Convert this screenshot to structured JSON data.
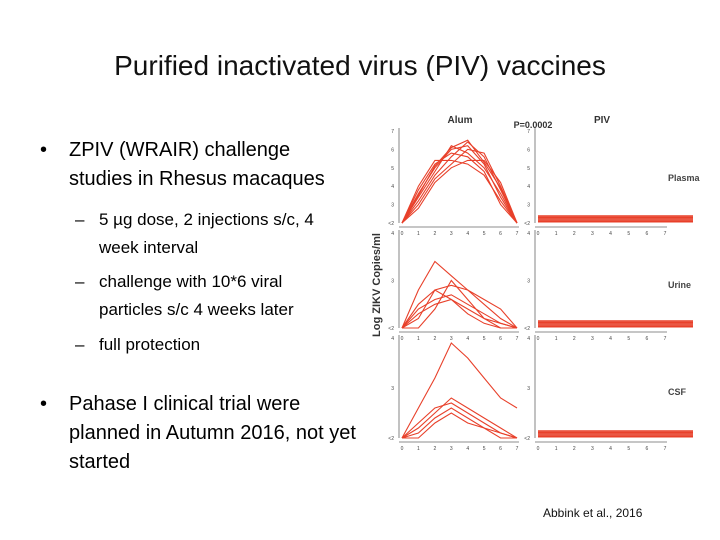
{
  "slide": {
    "title": "Purified inactivated virus (PIV) vaccines",
    "citation": "Abbink et al., 2016"
  },
  "bullets": [
    {
      "marker": "•",
      "text": "ZPIV (WRAIR) challenge studies in Rhesus macaques"
    },
    {
      "marker": "–",
      "text": "5 µg dose, 2 injections s/c, 4 week interval"
    },
    {
      "marker": "–",
      "text": "challenge with 10*6 viral particles s/c 4 weeks later"
    },
    {
      "marker": "–",
      "text": "full protection"
    },
    {
      "marker": "•",
      "text": "Pahase I clinical trial were planned in Autumn 2016, not yet started"
    }
  ],
  "figure": {
    "ylabel": "Log ZIKV Copies/ml",
    "pvalue": "P=0.0002",
    "columns": [
      "Alum",
      "PIV"
    ],
    "panels": [
      {
        "name": "Plasma",
        "yticks": [
          "<2",
          "3",
          "4",
          "5",
          "6",
          "7"
        ]
      },
      {
        "name": "Urine",
        "yticks": [
          "<2",
          "3",
          "4"
        ]
      },
      {
        "name": "CSF",
        "yticks": [
          "<2",
          "3",
          "4"
        ]
      }
    ],
    "xticks": [
      "0",
      "1",
      "2",
      "3",
      "4",
      "5",
      "6",
      "7"
    ],
    "line_color": "#e8402a"
  },
  "chart_data": {
    "type": "line",
    "x": [
      0,
      1,
      2,
      3,
      4,
      5,
      6,
      7
    ],
    "panels": [
      {
        "name": "Plasma",
        "ylim": [
          2,
          7
        ],
        "alum": [
          [
            2,
            3.2,
            4.6,
            5.6,
            6.4,
            5.6,
            3.8,
            2
          ],
          [
            2,
            3.6,
            5.0,
            6.0,
            6.2,
            5.2,
            3.4,
            2
          ],
          [
            2,
            3.8,
            5.2,
            5.8,
            5.6,
            4.8,
            3.0,
            2
          ],
          [
            2,
            3.0,
            4.4,
            5.2,
            6.0,
            5.8,
            4.0,
            2
          ],
          [
            2,
            3.4,
            4.8,
            6.2,
            5.8,
            5.0,
            3.6,
            2
          ],
          [
            2,
            4.0,
            5.4,
            5.4,
            5.2,
            4.6,
            3.2,
            2
          ],
          [
            2,
            2.8,
            4.2,
            5.0,
            5.4,
            5.4,
            4.2,
            2
          ],
          [
            2,
            3.5,
            5.1,
            6.1,
            6.5,
            5.3,
            3.9,
            2
          ]
        ],
        "piv_count": 8
      },
      {
        "name": "Urine",
        "ylim": [
          2,
          4
        ],
        "alum": [
          [
            2,
            2.8,
            3.4,
            3.1,
            2.8,
            2.5,
            2.2,
            2
          ],
          [
            2,
            2.2,
            2.8,
            2.9,
            2.8,
            2.6,
            2.4,
            2
          ],
          [
            2,
            2.3,
            2.5,
            2.6,
            2.4,
            2.2,
            2.1,
            2
          ],
          [
            2,
            2.4,
            2.6,
            2.7,
            2.5,
            2.3,
            2.1,
            2
          ],
          [
            2,
            2.5,
            2.8,
            2.6,
            2.3,
            2.1,
            2.0,
            2
          ],
          [
            2,
            2.0,
            2.4,
            3.0,
            2.6,
            2.2,
            2.0,
            2
          ]
        ],
        "piv_count": 8
      },
      {
        "name": "CSF",
        "ylim": [
          2,
          4
        ],
        "alum": [
          [
            2,
            2.6,
            3.2,
            3.9,
            3.6,
            3.2,
            2.8,
            2.6
          ],
          [
            2,
            2.2,
            2.5,
            2.8,
            2.6,
            2.4,
            2.2,
            2
          ],
          [
            2,
            2.3,
            2.6,
            2.7,
            2.5,
            2.3,
            2.1,
            2
          ],
          [
            2,
            2.1,
            2.4,
            2.6,
            2.4,
            2.2,
            2.1,
            2
          ],
          [
            2,
            2.0,
            2.3,
            2.5,
            2.3,
            2.2,
            2.0,
            2
          ]
        ],
        "piv_count": 8
      }
    ]
  }
}
